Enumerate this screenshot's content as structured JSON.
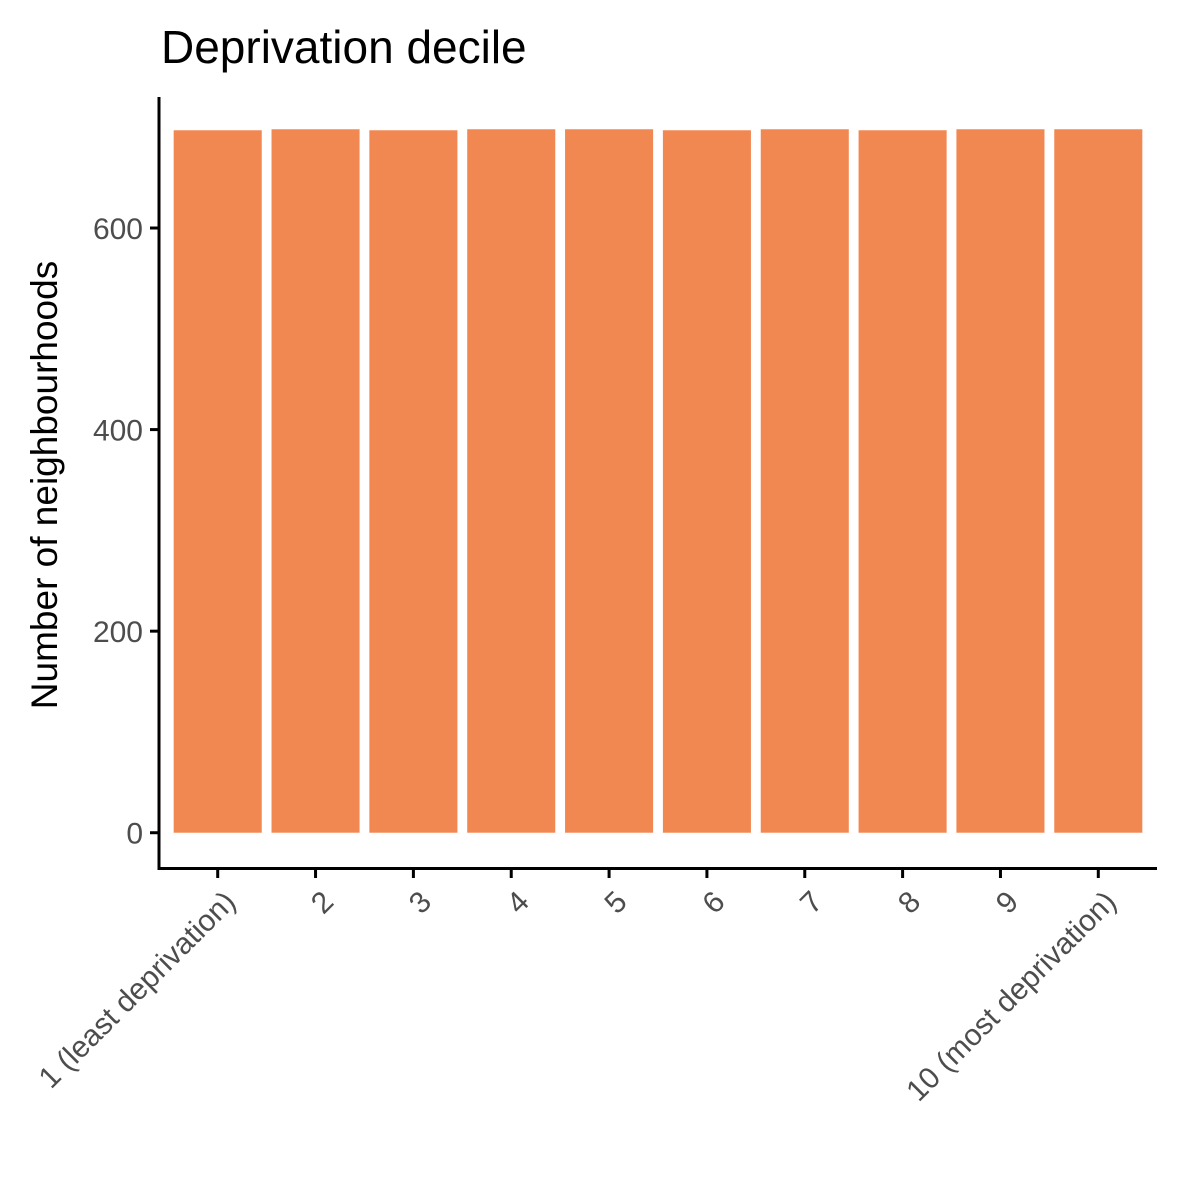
{
  "chart_data": {
    "type": "bar",
    "title": "Deprivation decile",
    "xlabel": "",
    "ylabel": "Number of neighbourhoods",
    "categories": [
      "1 (least deprivation)",
      "2",
      "3",
      "4",
      "5",
      "6",
      "7",
      "8",
      "9",
      "10 (most deprivation)"
    ],
    "values": [
      697,
      698,
      697,
      698,
      698,
      697,
      698,
      697,
      698,
      698
    ],
    "ylim": [
      -35,
      730
    ],
    "yticks": [
      0,
      200,
      400,
      600
    ],
    "ytick_labels": [
      "0",
      "200",
      "400",
      "600"
    ],
    "bar_color": "#f28851",
    "grid": false,
    "legend": "none"
  }
}
